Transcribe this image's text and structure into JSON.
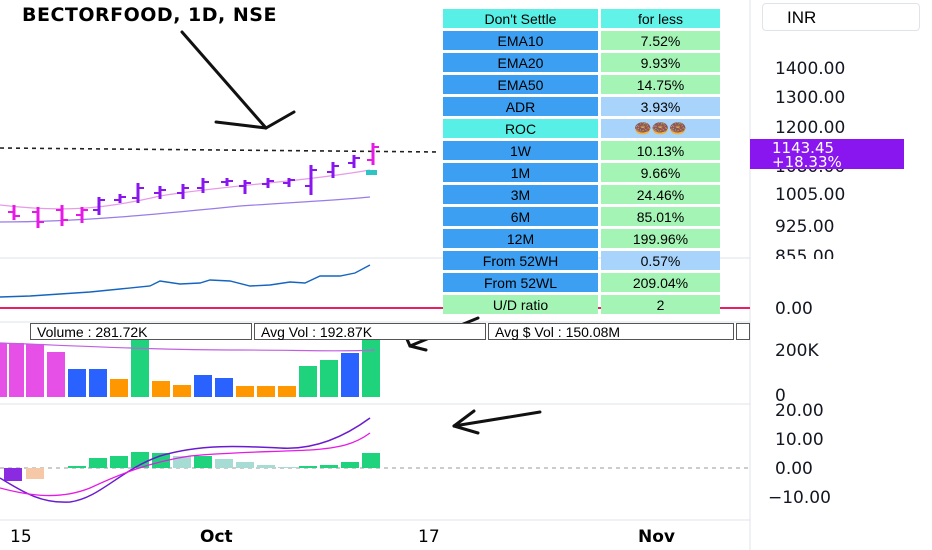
{
  "header": {
    "title": "BECTORFOOD, 1D, NSE",
    "currency": "INR"
  },
  "price_axis": {
    "labels": [
      "1400.00",
      "1300.00",
      "1200.00",
      "1080.00",
      "1005.00",
      "925.00",
      "855.00"
    ],
    "last_price": "1143.45",
    "change": "+18.33%"
  },
  "stats_table": {
    "header": [
      "Don't Settle",
      "for less"
    ],
    "rows": [
      {
        "label": "EMA10",
        "value": "7.52%"
      },
      {
        "label": "EMA20",
        "value": "9.93%"
      },
      {
        "label": "EMA50",
        "value": "14.75%"
      },
      {
        "label": "ADR",
        "value": "3.93%"
      },
      {
        "label": "ROC",
        "value": "🍩🍩🍩"
      },
      {
        "label": "1W",
        "value": "10.13%"
      },
      {
        "label": "1M",
        "value": "9.66%"
      },
      {
        "label": "3M",
        "value": "24.46%"
      },
      {
        "label": "6M",
        "value": "85.01%"
      },
      {
        "label": "12M",
        "value": "199.96%"
      },
      {
        "label": "From 52WH",
        "value": "0.57%"
      },
      {
        "label": "From 52WL",
        "value": "209.04%"
      },
      {
        "label": "U/D ratio",
        "value": "2"
      }
    ]
  },
  "rs_axis": {
    "label": "0.00"
  },
  "volume": {
    "volume_label": "Volume : 281.72K",
    "avg_vol_label": "Avg Vol : 192.87K",
    "avg_dollar_label": "Avg $ Vol : 150.08M",
    "axis": [
      "200K",
      "0"
    ]
  },
  "macd_axis": {
    "labels": [
      "20.00",
      "10.00",
      "0.00",
      "−10.00"
    ]
  },
  "time_axis": {
    "labels": [
      "15",
      "Oct",
      "17",
      "Nov"
    ]
  },
  "colors": {
    "accent_purple": "#8a16ef",
    "magenta": "#e619e6",
    "volume_green": "#1fd37c",
    "volume_blue": "#2962ff",
    "volume_orange": "#ff9800",
    "rs_line": "#1565c0",
    "zero_line": "#e91e63"
  },
  "icons": [
    "arrow-annotation-icon",
    "donut-icon"
  ]
}
